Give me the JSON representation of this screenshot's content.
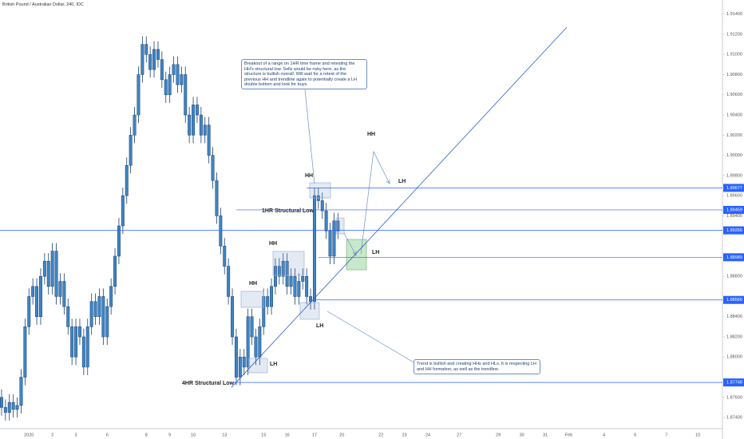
{
  "chart_data": {
    "type": "candlestick",
    "title": "British Pound / Australian Dollar, 240, IDC",
    "color": "#3d85c6",
    "edge_color": "#1c3f6e",
    "level_color": "#2962ff",
    "grid": false,
    "xlim": [
      -0.4,
      184.3
    ],
    "ylim": [
      1.8729,
      1.9154
    ],
    "yticks": [
      {
        "value": 1.914,
        "label": "1.91400"
      },
      {
        "value": 1.912,
        "label": "1.91200"
      },
      {
        "value": 1.91,
        "label": "1.91000"
      },
      {
        "value": 1.908,
        "label": "1.90800"
      },
      {
        "value": 1.906,
        "label": "1.90600"
      },
      {
        "value": 1.904,
        "label": "1.90400"
      },
      {
        "value": 1.902,
        "label": "1.90200"
      },
      {
        "value": 1.9,
        "label": "1.90000"
      },
      {
        "value": 1.898,
        "label": "1.89800"
      },
      {
        "value": 1.896,
        "label": "1.89600"
      },
      {
        "value": 1.894,
        "label": "1.89400"
      },
      {
        "value": 1.888,
        "label": "1.88800"
      },
      {
        "value": 1.884,
        "label": "1.88400"
      },
      {
        "value": 1.882,
        "label": "1.88200"
      },
      {
        "value": 1.88,
        "label": "1.88000"
      },
      {
        "value": 1.876,
        "label": "1.87600"
      },
      {
        "value": 1.874,
        "label": "1.87400"
      }
    ],
    "xticks": [
      {
        "value": 7,
        "label": "2020"
      },
      {
        "value": 13,
        "label": "2"
      },
      {
        "value": 19,
        "label": "3"
      },
      {
        "value": 27,
        "label": "6"
      },
      {
        "value": 37,
        "label": "8"
      },
      {
        "value": 43,
        "label": "9"
      },
      {
        "value": 49,
        "label": "10"
      },
      {
        "value": 57,
        "label": "13"
      },
      {
        "value": 67,
        "label": "15"
      },
      {
        "value": 73,
        "label": "16"
      },
      {
        "value": 80,
        "label": "17"
      },
      {
        "value": 87,
        "label": "20"
      },
      {
        "value": 97,
        "label": "22"
      },
      {
        "value": 103,
        "label": "23"
      },
      {
        "value": 109,
        "label": "24"
      },
      {
        "value": 117,
        "label": "27"
      },
      {
        "value": 127,
        "label": "29"
      },
      {
        "value": 133,
        "label": "30"
      },
      {
        "value": 139,
        "label": "31"
      },
      {
        "value": 145,
        "label": "Feb"
      },
      {
        "value": 154,
        "label": "4"
      },
      {
        "value": 162,
        "label": "6"
      },
      {
        "value": 170,
        "label": "7"
      },
      {
        "value": 178,
        "label": "10"
      }
    ],
    "open": [
      1.876,
      1.875,
      1.8745,
      1.8755,
      1.8748,
      1.8752,
      1.878,
      1.883,
      1.886,
      1.887,
      1.884,
      1.888,
      1.8895,
      1.887,
      1.8905,
      1.886,
      1.8875,
      1.885,
      1.883,
      1.88,
      1.883,
      1.882,
      1.879,
      1.883,
      1.8855,
      1.884,
      1.886,
      1.882,
      1.885,
      1.887,
      1.89,
      1.893,
      1.896,
      1.899,
      1.902,
      1.904,
      1.908,
      1.911,
      1.91,
      1.9085,
      1.9105,
      1.9095,
      1.9075,
      1.906,
      1.908,
      1.909,
      1.907,
      1.908,
      1.904,
      1.902,
      1.905,
      1.904,
      1.902,
      1.903,
      1.9,
      1.8975,
      1.894,
      1.891,
      1.889,
      1.886,
      1.882,
      1.878,
      1.88,
      1.879,
      1.884,
      1.882,
      1.88,
      1.883,
      1.886,
      1.885,
      1.887,
      1.889,
      1.888,
      1.8895,
      1.887,
      1.888,
      1.886,
      1.8875,
      1.888,
      1.886,
      1.8855,
      1.896,
      1.8955,
      1.8945,
      1.8925,
      1.89,
      1.8935
    ],
    "high": [
      1.8768,
      1.8758,
      1.8763,
      1.8763,
      1.876,
      1.8788,
      1.8838,
      1.8868,
      1.8878,
      1.8878,
      1.8888,
      1.8903,
      1.8903,
      1.8913,
      1.8913,
      1.8883,
      1.8883,
      1.8858,
      1.8838,
      1.8838,
      1.8838,
      1.8828,
      1.8838,
      1.8863,
      1.8863,
      1.8868,
      1.8868,
      1.8858,
      1.8878,
      1.8908,
      1.8938,
      1.8968,
      1.8998,
      1.9028,
      1.9048,
      1.9088,
      1.9118,
      1.9118,
      1.9108,
      1.9113,
      1.9113,
      1.9103,
      1.9083,
      1.9088,
      1.9098,
      1.9098,
      1.9088,
      1.9088,
      1.9048,
      1.9058,
      1.9058,
      1.9048,
      1.9038,
      1.9038,
      1.9008,
      1.8983,
      1.8948,
      1.8918,
      1.8898,
      1.8868,
      1.8828,
      1.8808,
      1.8808,
      1.8848,
      1.8848,
      1.8828,
      1.8838,
      1.8868,
      1.8868,
      1.8878,
      1.8898,
      1.8898,
      1.8903,
      1.8903,
      1.8888,
      1.8888,
      1.8883,
      1.8888,
      1.8888,
      1.8868,
      1.8968,
      1.8968,
      1.8963,
      1.8953,
      1.8933,
      1.8943,
      1.8943
    ],
    "low": [
      1.8742,
      1.8737,
      1.8737,
      1.874,
      1.874,
      1.8744,
      1.8772,
      1.8822,
      1.8852,
      1.8832,
      1.8832,
      1.8872,
      1.8862,
      1.8862,
      1.8852,
      1.8852,
      1.8842,
      1.8822,
      1.8792,
      1.8792,
      1.8812,
      1.8782,
      1.8782,
      1.8822,
      1.8832,
      1.8832,
      1.8812,
      1.8812,
      1.8842,
      1.8862,
      1.8892,
      1.8922,
      1.8952,
      1.8982,
      1.9012,
      1.9032,
      1.9072,
      1.9092,
      1.9077,
      1.9077,
      1.9087,
      1.9067,
      1.9052,
      1.9052,
      1.9072,
      1.9062,
      1.9062,
      1.9032,
      1.9012,
      1.9012,
      1.9032,
      1.9012,
      1.9012,
      1.8992,
      1.8967,
      1.8932,
      1.8902,
      1.8882,
      1.8852,
      1.8812,
      1.8772,
      1.8772,
      1.8782,
      1.8782,
      1.8812,
      1.8792,
      1.8792,
      1.8822,
      1.8842,
      1.8842,
      1.8862,
      1.8872,
      1.8872,
      1.8862,
      1.8862,
      1.8852,
      1.8852,
      1.8867,
      1.8852,
      1.8847,
      1.8847,
      1.8947,
      1.8937,
      1.8917,
      1.8892,
      1.8892,
      1.8917
    ],
    "close": [
      1.875,
      1.8745,
      1.8755,
      1.8748,
      1.8752,
      1.878,
      1.883,
      1.886,
      1.887,
      1.884,
      1.888,
      1.8895,
      1.887,
      1.8905,
      1.886,
      1.8875,
      1.885,
      1.883,
      1.88,
      1.883,
      1.882,
      1.879,
      1.883,
      1.8855,
      1.884,
      1.886,
      1.882,
      1.885,
      1.887,
      1.89,
      1.893,
      1.896,
      1.899,
      1.902,
      1.904,
      1.908,
      1.911,
      1.91,
      1.9085,
      1.9105,
      1.9095,
      1.9075,
      1.906,
      1.908,
      1.909,
      1.907,
      1.908,
      1.904,
      1.902,
      1.905,
      1.904,
      1.902,
      1.903,
      1.9,
      1.8975,
      1.894,
      1.891,
      1.889,
      1.886,
      1.882,
      1.878,
      1.88,
      1.879,
      1.884,
      1.882,
      1.88,
      1.883,
      1.886,
      1.885,
      1.887,
      1.889,
      1.888,
      1.8895,
      1.887,
      1.888,
      1.886,
      1.8875,
      1.888,
      1.886,
      1.8855,
      1.896,
      1.8955,
      1.8945,
      1.8925,
      1.89,
      1.8935,
      1.8925
    ],
    "levels": [
      {
        "value": 1.89677,
        "label": "1.89677",
        "x0": 78
      },
      {
        "value": 1.89459,
        "label": "1.89459",
        "x0": 60
      },
      {
        "value": 1.89256,
        "label": "1.89256",
        "x0": -0.4
      },
      {
        "value": 1.88989,
        "label": "1.88989",
        "x0": 81
      },
      {
        "value": 1.88566,
        "label": "1.88566",
        "x0": 80
      },
      {
        "value": 1.87748,
        "label": "1.87748",
        "x0": 58.8
      }
    ],
    "trendline": {
      "x": [
        58.8,
        144.5
      ],
      "y": [
        1.877,
        1.9127
      ]
    },
    "annotations": [
      "HH",
      "LH",
      "HH",
      "1HR Structural Low",
      "HH",
      "LH",
      "HH",
      "LH",
      "LH",
      "4HR Structural Low"
    ],
    "notes": [
      "Breakout of a range on 1HR time frame and retesting the HH's structural low. Sells would be risky here, as the structure is bullish overall. Will wait for a retest of the previous HH and trendline again to potentially create a LH double bottom and look for buys.",
      "Trend is bullish and creating HHs and HLs. It is respecting LH and HH formation, as well as the trendline."
    ]
  }
}
